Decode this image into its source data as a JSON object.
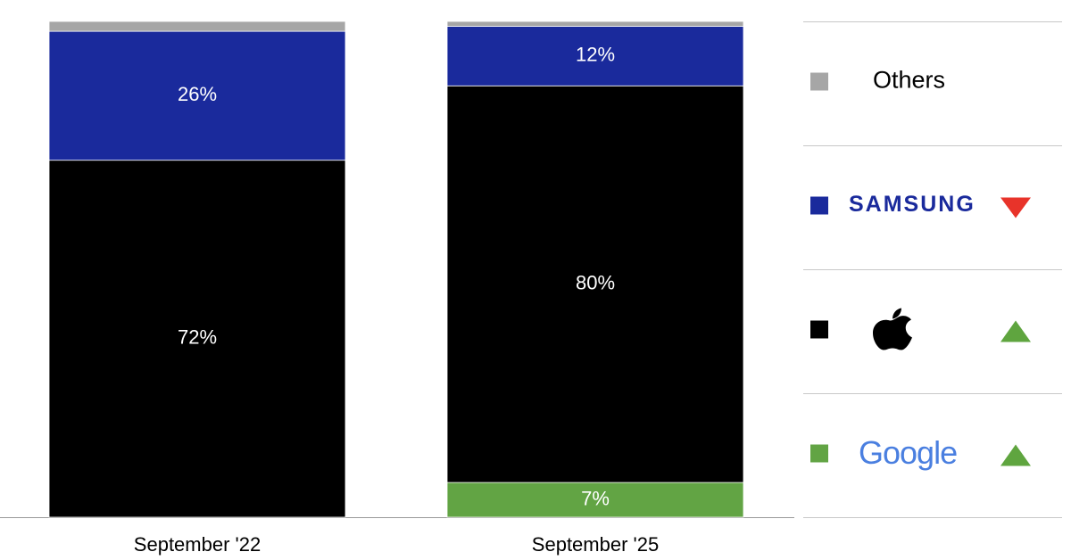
{
  "chart_data": {
    "type": "stacked-bar",
    "categories": [
      "September '22",
      "September '25"
    ],
    "ylim": [
      0,
      100
    ],
    "series": [
      {
        "name": "Google",
        "color": "#62a444",
        "trend": "up",
        "values": [
          null,
          7
        ],
        "value_labels": [
          null,
          "7%"
        ]
      },
      {
        "color": "#000000",
        "trend": "up",
        "values": [
          72,
          80
        ],
        "value_labels": [
          "72%",
          "80%"
        ]
      },
      {
        "name": "SAMSUNG",
        "color": "#1a2a9c",
        "trend": "down",
        "values": [
          26,
          12
        ],
        "value_labels": [
          "26%",
          "12%"
        ]
      },
      {
        "name": "Others",
        "color": "#a6a6a6",
        "values": [
          2,
          1
        ]
      }
    ]
  }
}
